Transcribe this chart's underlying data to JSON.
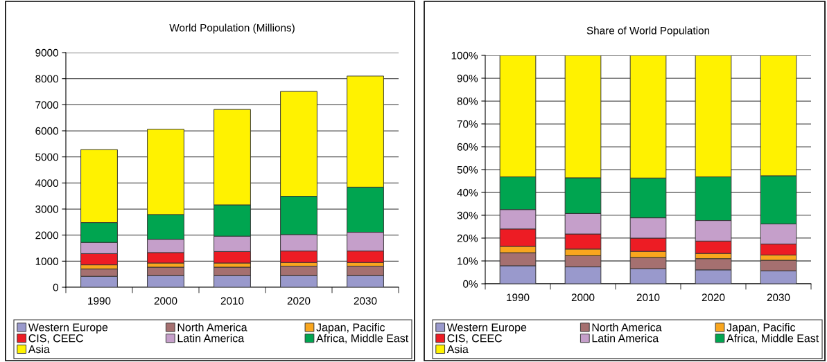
{
  "chart_data": [
    {
      "type": "bar",
      "title": "World Population (Millions)",
      "stacked": true,
      "categories": [
        "1990",
        "2000",
        "2010",
        "2020",
        "2030"
      ],
      "series": [
        {
          "name": "Western Europe",
          "color": "#9999cc",
          "values": [
            420,
            450,
            450,
            450,
            450
          ]
        },
        {
          "name": "North America",
          "color": "#a57070",
          "values": [
            280,
            320,
            320,
            360,
            360
          ]
        },
        {
          "name": "Japan, Pacific",
          "color": "#f9a61e",
          "values": [
            160,
            160,
            160,
            140,
            140
          ]
        },
        {
          "name": "CIS, CEEC",
          "color": "#ed1c24",
          "values": [
            430,
            400,
            440,
            440,
            440
          ]
        },
        {
          "name": "Latin America",
          "color": "#c59fca",
          "values": [
            430,
            510,
            590,
            630,
            720
          ]
        },
        {
          "name": "Africa, Middle East",
          "color": "#00a550",
          "values": [
            760,
            950,
            1200,
            1470,
            1730
          ]
        },
        {
          "name": "Asia",
          "color": "#fff200",
          "values": [
            2800,
            3270,
            3660,
            4020,
            4260
          ]
        }
      ],
      "ylim": [
        0,
        9000
      ],
      "yticks": [
        0,
        1000,
        2000,
        3000,
        4000,
        5000,
        6000,
        7000,
        8000,
        9000
      ],
      "grid": "y",
      "legend": "bottom"
    },
    {
      "type": "bar",
      "title": "Share of World Population",
      "stacked": true,
      "categories": [
        "1990",
        "2000",
        "2010",
        "2020",
        "2030"
      ],
      "series": [
        {
          "name": "Western Europe",
          "color": "#9999cc",
          "values": [
            7.9,
            7.4,
            6.6,
            6.1,
            5.7
          ]
        },
        {
          "name": "North America",
          "color": "#a57070",
          "values": [
            5.7,
            4.9,
            4.9,
            4.9,
            4.6
          ]
        },
        {
          "name": "Japan, Pacific",
          "color": "#f9a61e",
          "values": [
            2.8,
            2.9,
            2.7,
            2.3,
            2.3
          ]
        },
        {
          "name": "CIS, CEEC",
          "color": "#ed1c24",
          "values": [
            7.6,
            6.6,
            5.8,
            5.4,
            4.8
          ]
        },
        {
          "name": "Latin America",
          "color": "#c59fca",
          "values": [
            8.5,
            9.0,
            8.9,
            9.0,
            8.8
          ]
        },
        {
          "name": "Africa, Middle East",
          "color": "#00a550",
          "values": [
            14.3,
            15.6,
            17.4,
            19.1,
            21.1
          ]
        },
        {
          "name": "Asia",
          "color": "#fff200",
          "values": [
            53.2,
            53.6,
            53.7,
            53.2,
            52.7
          ]
        }
      ],
      "ylim": [
        0,
        100
      ],
      "yticks": [
        {
          "value": 0,
          "label": "0%"
        },
        {
          "value": 10,
          "label": "10%"
        },
        {
          "value": 20,
          "label": "20%"
        },
        {
          "value": 30,
          "label": "30%"
        },
        {
          "value": 40,
          "label": "40%"
        },
        {
          "value": 50,
          "label": "50%"
        },
        {
          "value": 60,
          "label": "60%"
        },
        {
          "value": 70,
          "label": "70%"
        },
        {
          "value": 80,
          "label": "80%"
        },
        {
          "value": 90,
          "label": "90%"
        },
        {
          "value": 100,
          "label": "100%"
        }
      ],
      "grid": "y",
      "legend": "bottom"
    }
  ]
}
